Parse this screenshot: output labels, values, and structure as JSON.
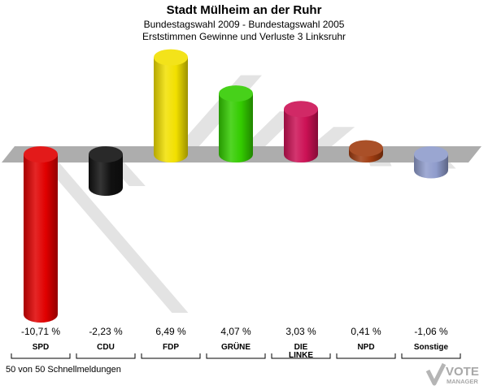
{
  "header": {
    "title": "Stadt Mülheim an der Ruhr",
    "subtitle1": "Bundestagswahl 2009 - Bundestagswahl 2005",
    "subtitle2": "Erststimmen Gewinne und Verluste 3 Linksruhr"
  },
  "footer": {
    "status": "50 von 50 Schnellmeldungen"
  },
  "logo": {
    "text_top": "VOTE",
    "text_bottom": "MANAGER"
  },
  "chart_data": {
    "type": "bar",
    "categories": [
      "SPD",
      "CDU",
      "FDP",
      "GRÜNE",
      "DIE\nLINKE",
      "NPD",
      "Sonstige"
    ],
    "values": [
      -10.71,
      -2.23,
      6.49,
      4.07,
      3.03,
      0.41,
      -1.06
    ],
    "value_labels": [
      "-10,71 %",
      "-2,23 %",
      "6,49 %",
      "4,07 %",
      "3,03 %",
      "0,41 %",
      "-1,06 %"
    ],
    "colors": [
      "#e00000",
      "#111111",
      "#f2e000",
      "#33cc00",
      "#cc1155",
      "#a03c10",
      "#8f9ccc"
    ],
    "title": "Stadt Mülheim an der Ruhr",
    "xlabel": "",
    "ylabel": "",
    "ylim": [
      -10.71,
      6.49
    ],
    "grid": false,
    "legend": "none"
  }
}
